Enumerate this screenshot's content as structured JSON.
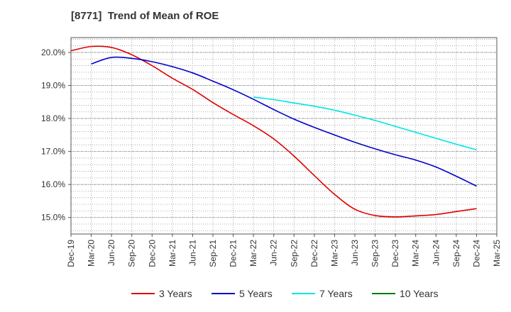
{
  "title": "[8771]  Trend of Mean of ROE",
  "chart_data": {
    "type": "line",
    "title": "[8771]  Trend of Mean of ROE",
    "xlabel": "",
    "ylabel": "",
    "x_ticks": [
      "Dec-19",
      "Mar-20",
      "Jun-20",
      "Sep-20",
      "Dec-20",
      "Mar-21",
      "Jun-21",
      "Sep-21",
      "Dec-21",
      "Mar-22",
      "Jun-22",
      "Sep-22",
      "Dec-22",
      "Mar-23",
      "Jun-23",
      "Sep-23",
      "Dec-23",
      "Mar-24",
      "Jun-24",
      "Sep-24",
      "Dec-24",
      "Mar-25"
    ],
    "y_ticks": [
      "15.0%",
      "16.0%",
      "17.0%",
      "18.0%",
      "19.0%",
      "20.0%"
    ],
    "y_tick_values": [
      15,
      16,
      17,
      18,
      19,
      20
    ],
    "ylim": [
      14.5,
      20.45
    ],
    "xlim": [
      0,
      21
    ],
    "grid": true,
    "series": [
      {
        "name": "3 Years",
        "color": "#e00000",
        "x": [
          0,
          1,
          2,
          3,
          4,
          5,
          6,
          7,
          8,
          9,
          10,
          11,
          12,
          13,
          14,
          15,
          16,
          17,
          18,
          19,
          20
        ],
        "values": [
          20.05,
          20.18,
          20.15,
          19.93,
          19.6,
          19.22,
          18.88,
          18.48,
          18.12,
          17.78,
          17.38,
          16.86,
          16.27,
          15.7,
          15.25,
          15.06,
          15.02,
          15.05,
          15.09,
          15.18,
          15.27
        ]
      },
      {
        "name": "5 Years",
        "color": "#0000cc",
        "x": [
          1,
          2,
          3,
          4,
          5,
          6,
          7,
          8,
          9,
          10,
          11,
          12,
          13,
          14,
          15,
          16,
          17,
          18,
          19,
          20
        ],
        "values": [
          19.65,
          19.85,
          19.82,
          19.72,
          19.57,
          19.38,
          19.13,
          18.87,
          18.58,
          18.27,
          17.98,
          17.73,
          17.5,
          17.28,
          17.08,
          16.9,
          16.74,
          16.53,
          16.25,
          15.95
        ]
      },
      {
        "name": "7 Years",
        "color": "#00e5e5",
        "x": [
          9,
          10,
          11,
          12,
          13,
          14,
          15,
          16,
          17,
          18,
          19,
          20
        ],
        "values": [
          18.65,
          18.57,
          18.47,
          18.37,
          18.25,
          18.1,
          17.94,
          17.76,
          17.58,
          17.4,
          17.22,
          17.05
        ]
      },
      {
        "name": "10 Years",
        "color": "#007a00",
        "x": [],
        "values": []
      }
    ],
    "legend_position": "bottom"
  }
}
